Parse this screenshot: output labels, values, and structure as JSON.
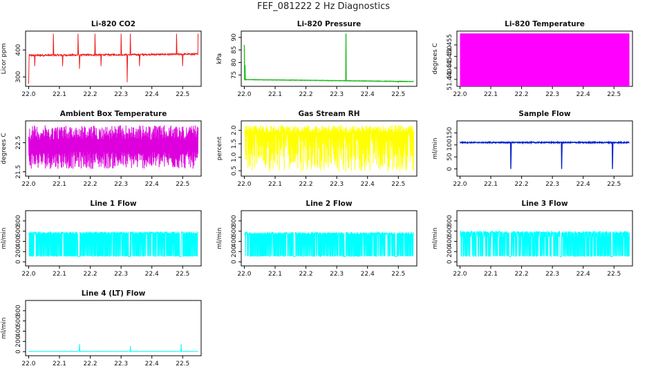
{
  "page_title": "FEF_081222  2 Hz Diagnostics",
  "chart_data": [
    {
      "type": "line",
      "title": "Li-820 CO2",
      "ylabel": "Licor ppm",
      "color": "#ee1c1c",
      "xlim": [
        21.99,
        22.56
      ],
      "ylim": [
        265,
        470
      ],
      "yticks": [
        300,
        400
      ],
      "xticks": [
        "22.0",
        "22.1",
        "22.2",
        "22.3",
        "22.4",
        "22.5"
      ],
      "x_range": [
        22.0,
        22.55
      ],
      "profile": "co2",
      "baseline": 380,
      "noise": 3,
      "spikes": [
        {
          "x": 22.0,
          "y": 275
        },
        {
          "x": 22.02,
          "y": 340
        },
        {
          "x": 22.08,
          "y": 460
        },
        {
          "x": 22.11,
          "y": 340
        },
        {
          "x": 22.16,
          "y": 460
        },
        {
          "x": 22.165,
          "y": 330
        },
        {
          "x": 22.215,
          "y": 460
        },
        {
          "x": 22.235,
          "y": 340
        },
        {
          "x": 22.3,
          "y": 460
        },
        {
          "x": 22.32,
          "y": 280
        },
        {
          "x": 22.33,
          "y": 460
        },
        {
          "x": 22.36,
          "y": 340
        },
        {
          "x": 22.48,
          "y": 460
        },
        {
          "x": 22.5,
          "y": 340
        },
        {
          "x": 22.55,
          "y": 460
        }
      ]
    },
    {
      "type": "line",
      "title": "Li-820 Pressure",
      "ylabel": "kPa",
      "color": "#22bb22",
      "xlim": [
        21.99,
        22.56
      ],
      "ylim": [
        70.5,
        92.5
      ],
      "yticks": [
        75,
        80,
        85,
        90
      ],
      "xticks": [
        "22.0",
        "22.1",
        "22.2",
        "22.3",
        "22.4",
        "22.5"
      ],
      "x_range": [
        22.0,
        22.55
      ],
      "profile": "pressure",
      "baseline": 73.2,
      "end_value": 72.4,
      "noise": 0.15,
      "spikes": [
        {
          "x": 22.0,
          "y": 87
        },
        {
          "x": 22.002,
          "y": 79
        },
        {
          "x": 22.33,
          "y": 91.5
        },
        {
          "x": 22.5,
          "y": 72
        }
      ]
    },
    {
      "type": "area",
      "title": "Li-820 Temperature",
      "ylabel": "degrees C",
      "color": "#ff00ff",
      "xlim": [
        21.99,
        22.56
      ],
      "ylim": [
        51.437,
        51.461
      ],
      "yticks": [
        51.44,
        51.445,
        51.45,
        51.455
      ],
      "ytick_labels": [
        "51.440",
        "51.445",
        "51.450",
        "51.455"
      ],
      "xticks": [
        "22.0",
        "22.1",
        "22.2",
        "22.3",
        "22.4",
        "22.5"
      ],
      "x_range": [
        22.0,
        22.55
      ],
      "profile": "band",
      "band": [
        51.437,
        51.46
      ]
    },
    {
      "type": "line",
      "title": "Ambient Box Temperature",
      "ylabel": "degrees C",
      "color": "#dd00dd",
      "xlim": [
        21.99,
        22.56
      ],
      "ylim": [
        21.35,
        23.25
      ],
      "yticks": [
        21.5,
        22.5
      ],
      "ytick_labels": [
        "21.5",
        "22.5"
      ],
      "xticks": [
        "22.0",
        "22.1",
        "22.2",
        "22.3",
        "22.4",
        "22.5"
      ],
      "x_range": [
        22.0,
        22.55
      ],
      "profile": "noisy",
      "low": 21.6,
      "high": 23.1
    },
    {
      "type": "line",
      "title": "Gas Stream RH",
      "ylabel": "percent",
      "color": "#ffff00",
      "xlim": [
        21.99,
        22.56
      ],
      "ylim": [
        0.3,
        2.35
      ],
      "yticks": [
        0.5,
        1.0,
        1.5,
        2.0
      ],
      "ytick_labels": [
        "0.5",
        "1.0",
        "1.5",
        "2.0"
      ],
      "xticks": [
        "22.0",
        "22.1",
        "22.2",
        "22.3",
        "22.4",
        "22.5"
      ],
      "x_range": [
        22.0,
        22.55
      ],
      "profile": "rh",
      "high": 2.2,
      "low": 0.45
    },
    {
      "type": "line",
      "title": "Sample Flow",
      "ylabel": "ml/min",
      "color": "#0022cc",
      "xlim": [
        21.99,
        22.56
      ],
      "ylim": [
        -30,
        200
      ],
      "yticks": [
        0,
        50,
        100,
        150
      ],
      "xticks": [
        "22.0",
        "22.1",
        "22.2",
        "22.3",
        "22.4",
        "22.5"
      ],
      "x_range": [
        22.0,
        22.55
      ],
      "profile": "flow",
      "baseline": 110,
      "noise": 2,
      "dips": [
        {
          "x": 22.165,
          "y": 0
        },
        {
          "x": 22.33,
          "y": 0
        },
        {
          "x": 22.495,
          "y": 0
        }
      ]
    },
    {
      "type": "line",
      "title": "Line 1 Flow",
      "ylabel": "ml/min",
      "color": "#00ffff",
      "xlim": [
        21.99,
        22.56
      ],
      "ylim": [
        -80,
        1000
      ],
      "yticks": [
        0,
        200,
        400,
        600,
        800
      ],
      "xticks": [
        "22.0",
        "22.1",
        "22.2",
        "22.3",
        "22.4",
        "22.5"
      ],
      "x_range": [
        22.0,
        22.55
      ],
      "profile": "switching",
      "high": 590,
      "low": 100,
      "gaps": [
        [
          22.16,
          22.165
        ],
        [
          22.325,
          22.33
        ],
        [
          22.49,
          22.495
        ]
      ]
    },
    {
      "type": "line",
      "title": "Line 2 Flow",
      "ylabel": "ml/min",
      "color": "#00ffff",
      "xlim": [
        21.99,
        22.56
      ],
      "ylim": [
        -80,
        1000
      ],
      "yticks": [
        0,
        200,
        400,
        600,
        800
      ],
      "xticks": [
        "22.0",
        "22.1",
        "22.2",
        "22.3",
        "22.4",
        "22.5"
      ],
      "x_range": [
        22.0,
        22.55
      ],
      "profile": "switching",
      "high": 580,
      "low": 100,
      "gaps": [
        [
          22.16,
          22.165
        ],
        [
          22.325,
          22.33
        ],
        [
          22.49,
          22.495
        ]
      ]
    },
    {
      "type": "line",
      "title": "Line 3 Flow",
      "ylabel": "ml/min",
      "color": "#00ffff",
      "xlim": [
        21.99,
        22.56
      ],
      "ylim": [
        -80,
        1000
      ],
      "yticks": [
        0,
        200,
        400,
        600,
        800
      ],
      "xticks": [
        "22.0",
        "22.1",
        "22.2",
        "22.3",
        "22.4",
        "22.5"
      ],
      "x_range": [
        22.0,
        22.55
      ],
      "profile": "switching",
      "high": 600,
      "low": 100,
      "mid": 490,
      "gaps": [
        [
          22.16,
          22.165
        ],
        [
          22.325,
          22.33
        ],
        [
          22.49,
          22.495
        ]
      ]
    },
    {
      "type": "line",
      "title": "Line 4 (LT) Flow",
      "ylabel": "ml/min",
      "color": "#00ffff",
      "xlim": [
        21.99,
        22.56
      ],
      "ylim": [
        -80,
        1000
      ],
      "yticks": [
        0,
        200,
        400,
        600,
        800
      ],
      "xticks": [
        "22.0",
        "22.1",
        "22.2",
        "22.3",
        "22.4",
        "22.5"
      ],
      "x_range": [
        22.0,
        22.55
      ],
      "profile": "flat",
      "baseline": 5,
      "spikes": [
        {
          "x": 22.165,
          "y": 150
        },
        {
          "x": 22.33,
          "y": 110
        },
        {
          "x": 22.495,
          "y": 150
        }
      ]
    }
  ]
}
